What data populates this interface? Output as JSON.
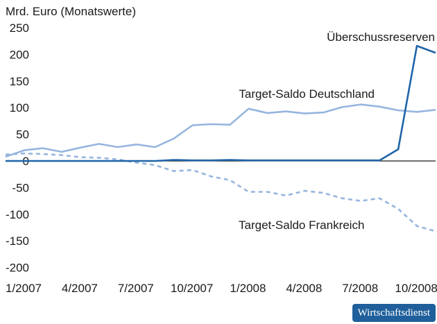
{
  "chart_data": {
    "type": "line",
    "ylabel": "Mrd. Euro (Monatswerte)",
    "ylim": [
      -200,
      250
    ],
    "yticks": [
      250,
      200,
      150,
      100,
      50,
      0,
      -50,
      -100,
      -150,
      -200
    ],
    "ytick_labels": [
      "250",
      "200",
      "150",
      "100",
      "50",
      "0",
      "-50",
      "-100",
      "-150",
      "-200"
    ],
    "x": [
      "1/2007",
      "2/2007",
      "3/2007",
      "4/2007",
      "5/2007",
      "6/2007",
      "7/2007",
      "8/2007",
      "9/2007",
      "10/2007",
      "11/2007",
      "12/2007",
      "1/2008",
      "2/2008",
      "3/2008",
      "4/2008",
      "5/2008",
      "6/2008",
      "7/2008",
      "8/2008",
      "9/2008",
      "10/2008",
      "11/2008",
      "12/2008"
    ],
    "xtick_labels": [
      "1/2007",
      "4/2007",
      "7/2007",
      "10/2007",
      "1/2008",
      "4/2008",
      "7/2008",
      "10/2008"
    ],
    "xtick_indices": [
      0,
      3,
      6,
      9,
      12,
      15,
      18,
      21
    ],
    "grid": false,
    "series": [
      {
        "name": "Überschussreserven",
        "color": "#1f64a8",
        "style": "solid",
        "values": [
          0,
          0,
          0,
          0,
          0,
          0,
          0,
          0,
          0,
          2,
          1,
          1,
          2,
          1,
          1,
          1,
          1,
          1,
          1,
          1,
          1,
          22,
          216,
          203
        ]
      },
      {
        "name": "Target-Saldo Deutschland",
        "color": "#96b5de",
        "style": "solid",
        "values": [
          8,
          20,
          24,
          17,
          25,
          32,
          26,
          31,
          26,
          42,
          67,
          69,
          68,
          98,
          90,
          93,
          89,
          91,
          101,
          106,
          102,
          95,
          92,
          96
        ]
      },
      {
        "name": "Target-Saldo Frankreich",
        "color": "#96b5de",
        "style": "dashed",
        "values": [
          12,
          14,
          13,
          11,
          7,
          6,
          3,
          -3,
          -8,
          -19,
          -17,
          -29,
          -36,
          -58,
          -58,
          -65,
          -56,
          -60,
          -70,
          -75,
          -70,
          -90,
          -122,
          -132
        ]
      }
    ]
  },
  "logo": {
    "text": "Wirtschaftsdienst"
  }
}
